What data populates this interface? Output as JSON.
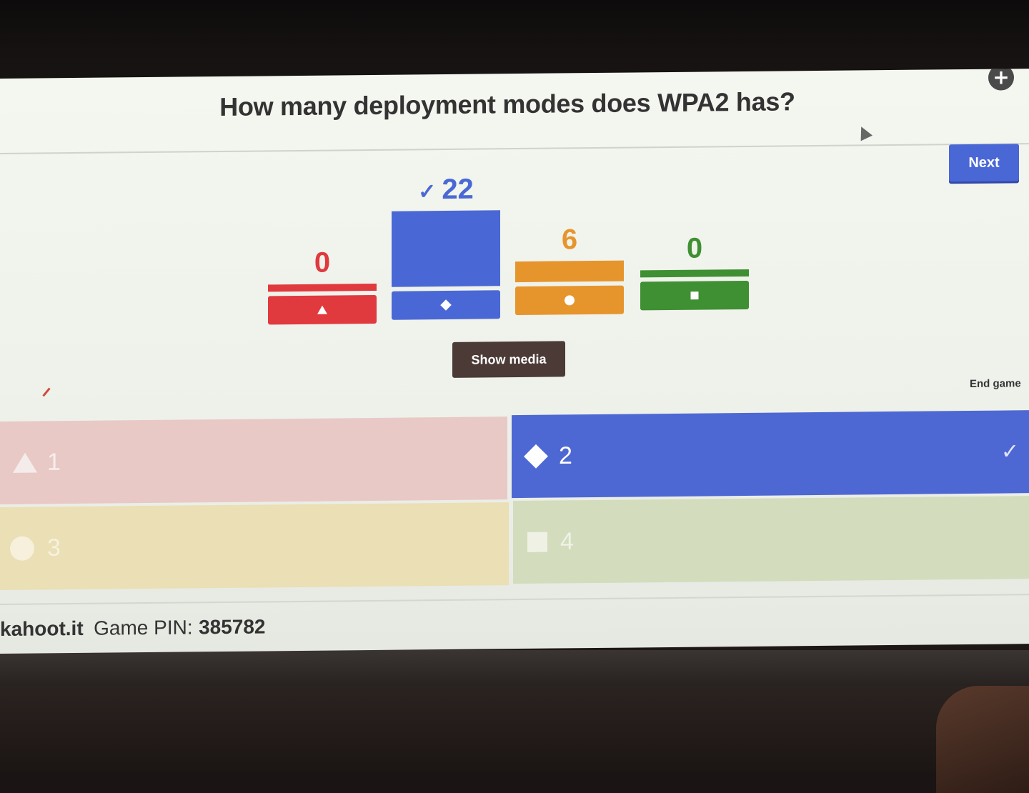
{
  "question": {
    "text": "How many deployment modes does WPA2 has?"
  },
  "header": {
    "next_label": "Next",
    "add_icon": "plus-circle-icon"
  },
  "results": {
    "check_mark": "✓",
    "bars": [
      {
        "id": "a1",
        "count": "0",
        "color": "#e0393e",
        "shape": "triangle",
        "fraction": 0.0,
        "correct": false
      },
      {
        "id": "a2",
        "count": "22",
        "color": "#4a68d5",
        "shape": "diamond",
        "fraction": 1.0,
        "correct": true
      },
      {
        "id": "a3",
        "count": "6",
        "color": "#e6952c",
        "shape": "circle",
        "fraction": 0.273,
        "correct": false
      },
      {
        "id": "a4",
        "count": "0",
        "color": "#3f8f33",
        "shape": "square",
        "fraction": 0.0,
        "correct": false
      }
    ]
  },
  "controls": {
    "show_media_label": "Show media",
    "end_game_label": "End game"
  },
  "answers": [
    {
      "id": "a1",
      "label": "1",
      "shape": "triangle",
      "correct": false,
      "text_color": "#f5eeec"
    },
    {
      "id": "a2",
      "label": "2",
      "shape": "diamond",
      "correct": true,
      "text_color": "#ffffff"
    },
    {
      "id": "a3",
      "label": "3",
      "shape": "circle",
      "correct": false,
      "text_color": "#f7f1de"
    },
    {
      "id": "a4",
      "label": "4",
      "shape": "square",
      "correct": false,
      "text_color": "#eff2e6"
    }
  ],
  "footer": {
    "brand": "kahoot.it",
    "pin_label": "Game PIN:",
    "pin_value": "385782"
  }
}
